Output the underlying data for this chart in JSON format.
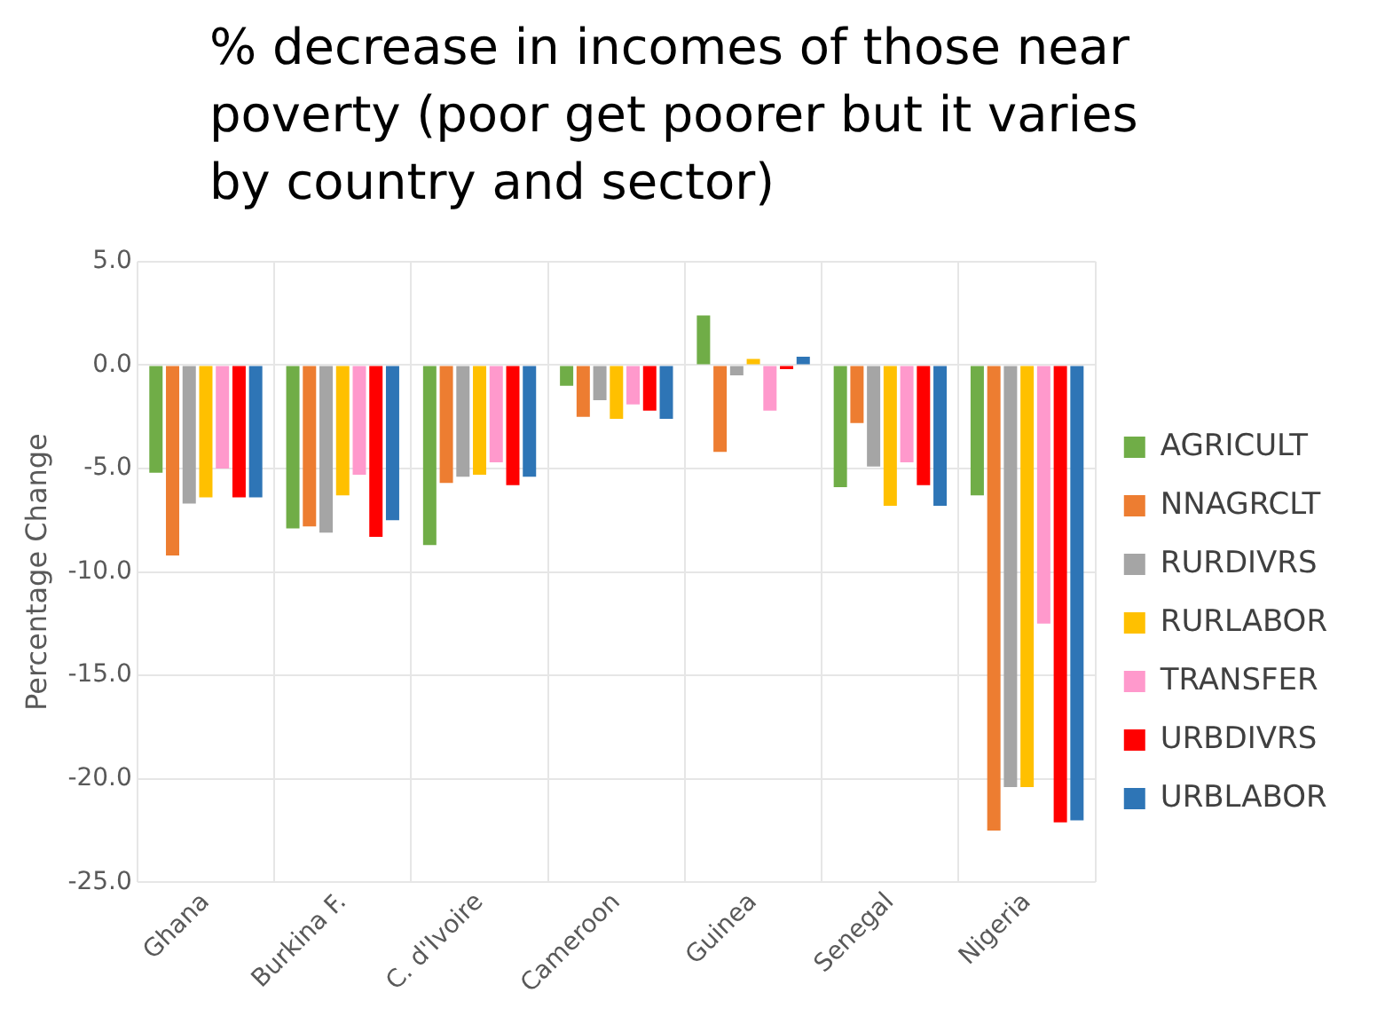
{
  "chart_data": {
    "type": "bar",
    "title": "% decrease in incomes of those near poverty (poor get poorer but it varies by country and sector)",
    "ylabel": "Percentage Change",
    "categories": [
      "Ghana",
      "Burkina F.",
      "C. d'Ivoire",
      "Cameroon",
      "Guinea",
      "Senegal",
      "Nigeria"
    ],
    "series": [
      {
        "name": "AGRICULT",
        "color": "#70ad47",
        "values": [
          -5.2,
          -7.9,
          -8.7,
          -1.0,
          2.4,
          -5.9,
          -6.3
        ]
      },
      {
        "name": "NNAGRCLT",
        "color": "#ed7d31",
        "values": [
          -9.2,
          -7.8,
          -5.7,
          -2.5,
          -4.2,
          -2.8,
          -22.5
        ]
      },
      {
        "name": "RURDIVRS",
        "color": "#a5a5a5",
        "values": [
          -6.7,
          -8.1,
          -5.4,
          -1.7,
          -0.5,
          -4.9,
          -20.4
        ]
      },
      {
        "name": "RURLABOR",
        "color": "#ffc000",
        "values": [
          -6.4,
          -6.3,
          -5.3,
          -2.6,
          0.3,
          -6.8,
          -20.4
        ]
      },
      {
        "name": "TRANSFER",
        "color": "#ff99cc",
        "values": [
          -5.0,
          -5.3,
          -4.7,
          -1.9,
          -2.2,
          -4.7,
          -12.5
        ]
      },
      {
        "name": "URBDIVRS",
        "color": "#ff0000",
        "values": [
          -6.4,
          -8.3,
          -5.8,
          -2.2,
          -0.2,
          -5.8,
          -22.1
        ]
      },
      {
        "name": "URBLABOR",
        "color": "#2e75b6",
        "values": [
          -6.4,
          -7.5,
          -5.4,
          -2.6,
          0.4,
          -6.8,
          -22.0
        ]
      }
    ],
    "ylim": [
      -25,
      5
    ],
    "yticks": [
      {
        "value": 5,
        "label": "5.0"
      },
      {
        "value": 0,
        "label": "0.0"
      },
      {
        "value": -5,
        "label": "-5.0"
      },
      {
        "value": -10,
        "label": "-10.0"
      },
      {
        "value": -15,
        "label": "-15.0"
      },
      {
        "value": -20,
        "label": "-20.0"
      },
      {
        "value": -25,
        "label": "-25.0"
      }
    ],
    "grid": true,
    "legend": "right"
  }
}
